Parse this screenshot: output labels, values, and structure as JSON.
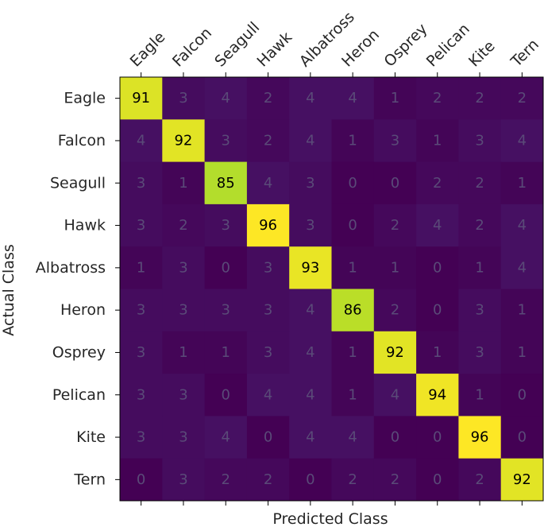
{
  "chart_data": {
    "type": "heatmap",
    "title": "",
    "xlabel": "Predicted Class",
    "ylabel": "Actual Class",
    "x_categories": [
      "Eagle",
      "Falcon",
      "Seagull",
      "Hawk",
      "Albatross",
      "Heron",
      "Osprey",
      "Pelican",
      "Kite",
      "Tern"
    ],
    "y_categories": [
      "Eagle",
      "Falcon",
      "Seagull",
      "Hawk",
      "Albatross",
      "Heron",
      "Osprey",
      "Pelican",
      "Kite",
      "Tern"
    ],
    "values": [
      [
        91,
        3,
        4,
        2,
        4,
        4,
        1,
        2,
        2,
        2
      ],
      [
        4,
        92,
        3,
        2,
        4,
        1,
        3,
        1,
        3,
        4
      ],
      [
        3,
        1,
        85,
        4,
        3,
        0,
        0,
        2,
        2,
        1
      ],
      [
        3,
        2,
        3,
        96,
        3,
        0,
        2,
        4,
        2,
        4
      ],
      [
        1,
        3,
        0,
        3,
        93,
        1,
        1,
        0,
        1,
        4
      ],
      [
        3,
        3,
        3,
        3,
        4,
        86,
        2,
        0,
        3,
        1
      ],
      [
        3,
        1,
        1,
        3,
        4,
        1,
        92,
        1,
        3,
        1
      ],
      [
        3,
        3,
        0,
        4,
        4,
        1,
        4,
        94,
        1,
        0
      ],
      [
        3,
        3,
        4,
        0,
        4,
        4,
        0,
        0,
        96,
        0
      ],
      [
        0,
        3,
        2,
        2,
        0,
        2,
        2,
        0,
        2,
        92
      ]
    ],
    "colormap": "viridis",
    "x_tick_position": "top",
    "grid": false
  }
}
